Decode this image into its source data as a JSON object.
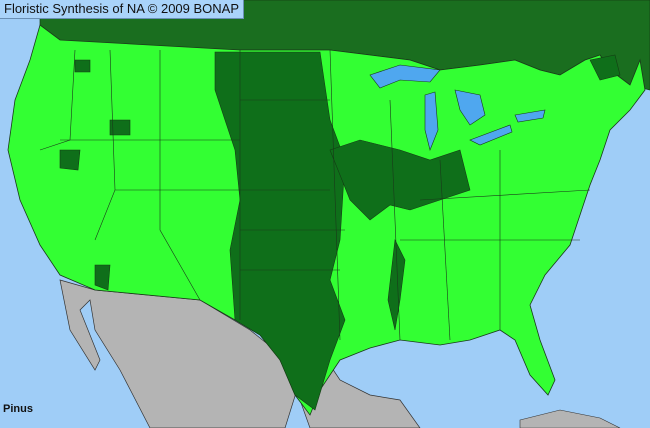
{
  "title": "Floristic Synthesis of NA © 2009 BONAP",
  "taxon": "Pinus",
  "colors": {
    "ocean": "#9fcdf7",
    "present": "#33ff33",
    "present_dark": "#0f6f1a",
    "canada": "#1a6e1f",
    "mexico": "#b4b4b4",
    "lakes": "#4fa7ef",
    "borders": "#1a3a1a"
  }
}
